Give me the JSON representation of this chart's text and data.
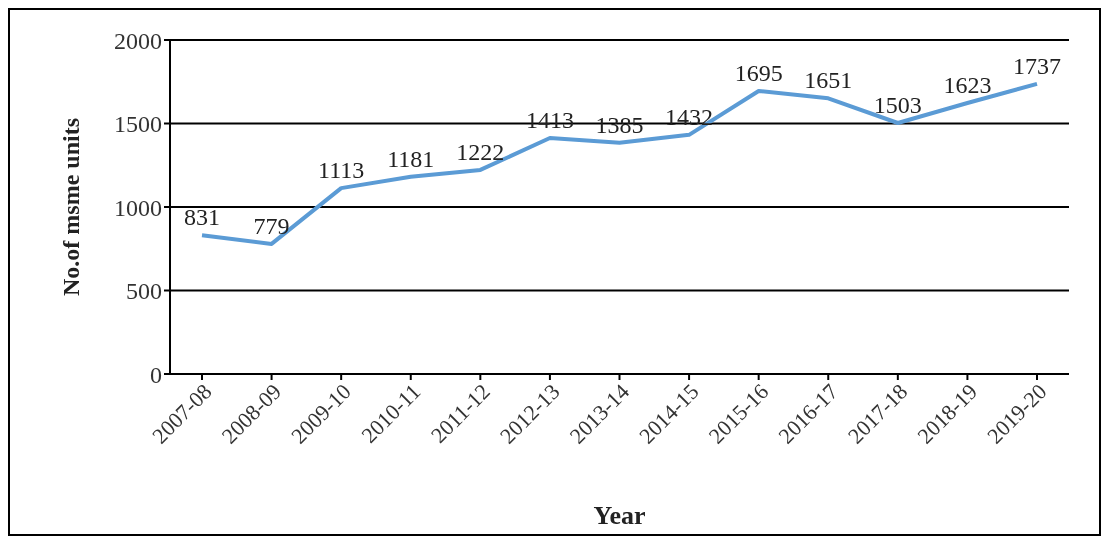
{
  "chart_data": {
    "type": "line",
    "xlabel": "Year",
    "ylabel": "No.of msme units",
    "categories": [
      "2007-08",
      "2008-09",
      "2009-10",
      "2010-11",
      "2011-12",
      "2012-13",
      "2013-14",
      "2014-15",
      "2015-16",
      "2016-17",
      "2017-18",
      "2018-19",
      "2019-20"
    ],
    "series": [
      {
        "color": "#5b9bd5",
        "values": [
          831,
          779,
          1113,
          1181,
          1222,
          1413,
          1385,
          1432,
          1695,
          1651,
          1503,
          1623,
          1737
        ]
      }
    ],
    "ylim": [
      0,
      2000
    ],
    "yticks": [
      0,
      500,
      1000,
      1500,
      2000
    ],
    "grid": "y",
    "data_labels": true,
    "marker": "none",
    "line_style": "solid"
  }
}
